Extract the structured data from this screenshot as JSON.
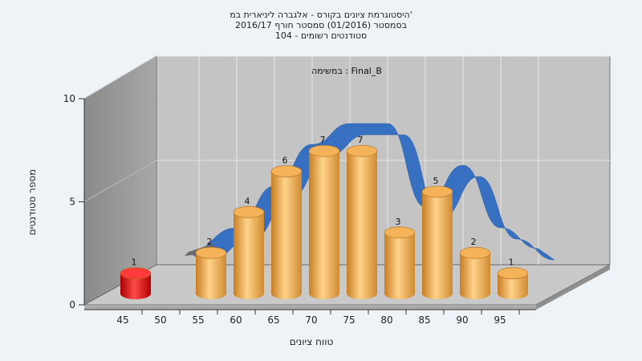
{
  "chart_data": {
    "type": "bar",
    "title_lines": [
      "היסטוגרמת ציונים בקורס - אלגברה ליניארית במ'",
      "בסמסטר  (01/2016)  סמסטר חורף 2016/17",
      "סטודנטים רשומים - 104"
    ],
    "annotation": "במשימה : Final_B",
    "xlabel": "טווח ציונים",
    "ylabel": "מספר סטודנטים",
    "ylim": [
      0,
      10
    ],
    "y_ticks": [
      "0",
      "5",
      "10"
    ],
    "x_ticks": [
      "45",
      "50",
      "55",
      "60",
      "65",
      "70",
      "75",
      "80",
      "85",
      "90",
      "95"
    ],
    "bars": [
      {
        "x": 45,
        "value": 1,
        "label": "1",
        "color": "#dd1111"
      },
      {
        "x": 55,
        "value": 2,
        "label": "2",
        "color": "#f0a64a"
      },
      {
        "x": 60,
        "value": 4,
        "label": "4",
        "color": "#f0a64a"
      },
      {
        "x": 65,
        "value": 6,
        "label": "6",
        "color": "#f0a64a"
      },
      {
        "x": 70,
        "value": 7,
        "label": "7",
        "color": "#f0a64a"
      },
      {
        "x": 75,
        "value": 7,
        "label": "7",
        "color": "#f0a64a"
      },
      {
        "x": 80,
        "value": 3,
        "label": "3",
        "color": "#f0a64a"
      },
      {
        "x": 85,
        "value": 5,
        "label": "5",
        "color": "#f0a64a"
      },
      {
        "x": 90,
        "value": 2,
        "label": "2",
        "color": "#f0a64a"
      },
      {
        "x": 95,
        "value": 1,
        "label": "1",
        "color": "#f0a64a"
      }
    ],
    "ribbon_color": "#2f6cc0",
    "grid": true
  }
}
